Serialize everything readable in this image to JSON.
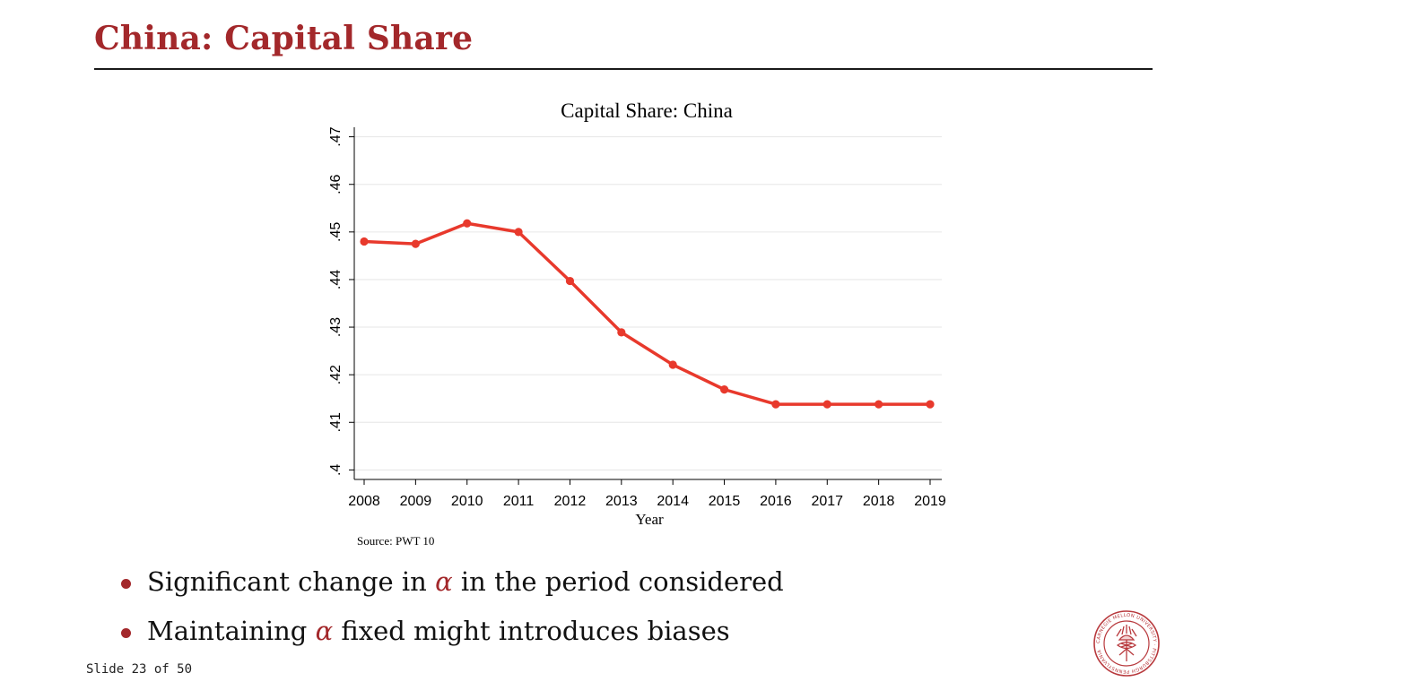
{
  "slide": {
    "title": "China: Capital Share",
    "bullets": [
      {
        "before": "Significant change in ",
        "symbol": "α",
        "after": " in the period considered"
      },
      {
        "before": "Maintaining ",
        "symbol": "α",
        "after": " fixed might introduces biases"
      }
    ],
    "footer": "Slide 23 of 50",
    "accent_color": "#a3282b",
    "logo_icon": "carnegie-mellon-seal-icon",
    "logo_text": "CARNEGIE MELLON UNIVERSITY · PITTSBURGH PENNSYLVANIA"
  },
  "chart_data": {
    "type": "line",
    "title": "Capital Share: China",
    "xlabel": "Year",
    "ylabel": "",
    "note": "Source: PWT 10",
    "x": [
      2008,
      2009,
      2010,
      2011,
      2012,
      2013,
      2014,
      2015,
      2016,
      2017,
      2018,
      2019
    ],
    "series": [
      {
        "values": [
          0.448,
          0.4475,
          0.4518,
          0.45,
          0.4397,
          0.4289,
          0.4221,
          0.4169,
          0.4138,
          0.4138,
          0.4138,
          0.4138
        ],
        "color": "#e8392c"
      }
    ],
    "yticks": [
      ".4",
      ".41",
      ".42",
      ".43",
      ".44",
      ".45",
      ".46",
      ".47"
    ],
    "ytick_values": [
      0.4,
      0.41,
      0.42,
      0.43,
      0.44,
      0.45,
      0.46,
      0.47
    ],
    "xticks": [
      "2008",
      "2009",
      "2010",
      "2011",
      "2012",
      "2013",
      "2014",
      "2015",
      "2016",
      "2017",
      "2018",
      "2019"
    ],
    "ylim": [
      0.398,
      0.472
    ],
    "grid": true,
    "legend": "none"
  }
}
